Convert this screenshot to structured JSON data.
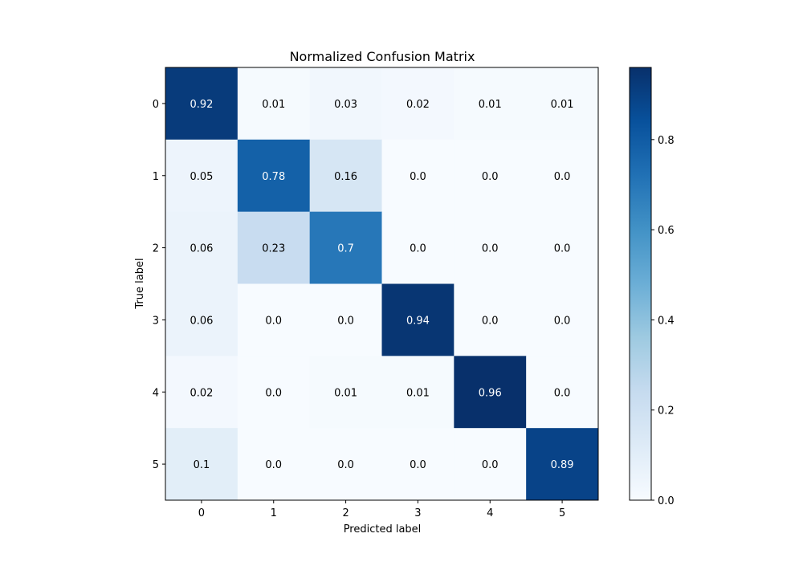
{
  "chart_data": {
    "type": "heatmap",
    "title": "Normalized Confusion Matrix",
    "xlabel": "Predicted label",
    "ylabel": "True label",
    "x_categories": [
      "0",
      "1",
      "2",
      "3",
      "4",
      "5"
    ],
    "y_categories": [
      "0",
      "1",
      "2",
      "3",
      "4",
      "5"
    ],
    "values": [
      [
        0.92,
        0.01,
        0.03,
        0.02,
        0.01,
        0.01
      ],
      [
        0.05,
        0.78,
        0.16,
        0.0,
        0.0,
        0.0
      ],
      [
        0.06,
        0.23,
        0.7,
        0.0,
        0.0,
        0.0
      ],
      [
        0.06,
        0.0,
        0.0,
        0.94,
        0.0,
        0.0
      ],
      [
        0.02,
        0.0,
        0.01,
        0.01,
        0.96,
        0.0
      ],
      [
        0.1,
        0.0,
        0.0,
        0.0,
        0.0,
        0.89
      ]
    ],
    "cell_labels": [
      [
        "0.92",
        "0.01",
        "0.03",
        "0.02",
        "0.01",
        "0.01"
      ],
      [
        "0.05",
        "0.78",
        "0.16",
        "0.0",
        "0.0",
        "0.0"
      ],
      [
        "0.06",
        "0.23",
        "0.7",
        "0.0",
        "0.0",
        "0.0"
      ],
      [
        "0.06",
        "0.0",
        "0.0",
        "0.94",
        "0.0",
        "0.0"
      ],
      [
        "0.02",
        "0.0",
        "0.01",
        "0.01",
        "0.96",
        "0.0"
      ],
      [
        "0.1",
        "0.0",
        "0.0",
        "0.0",
        "0.0",
        "0.89"
      ]
    ],
    "colormap": "Blues",
    "colorbar": {
      "range": [
        0.0,
        0.96
      ],
      "ticks": [
        0.0,
        0.2,
        0.4,
        0.6,
        0.8
      ],
      "tick_labels": [
        "0.0",
        "0.2",
        "0.4",
        "0.6",
        "0.8"
      ]
    },
    "grid": false
  }
}
